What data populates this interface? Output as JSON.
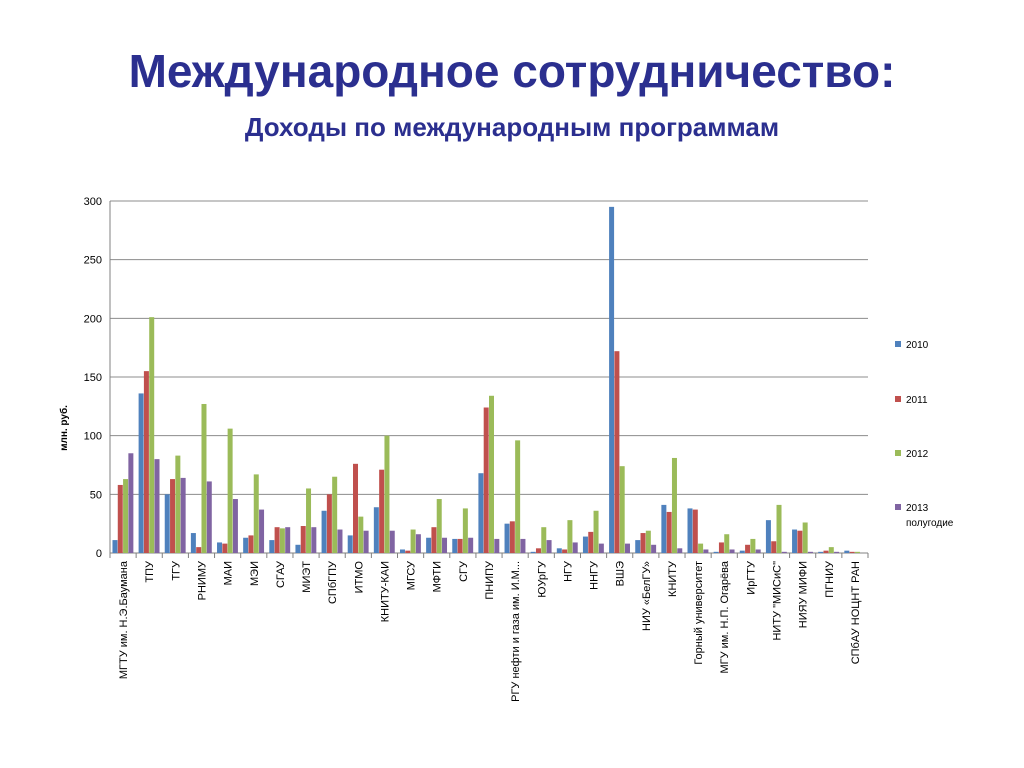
{
  "slide": {
    "title": "Международное сотрудничество:",
    "subtitle": "Доходы по международным программам"
  },
  "chart_data": {
    "type": "bar",
    "ylabel": "млн. руб.",
    "ylim": [
      0,
      300
    ],
    "yticks": [
      0,
      50,
      100,
      150,
      200,
      250,
      300
    ],
    "grid": true,
    "legend_position": "right",
    "categories": [
      "МГТУ им. Н.Э.Баумана",
      "ТПУ",
      "ТГУ",
      "РНИМУ",
      "МАИ",
      "МЭИ",
      "СГАУ",
      "МИЭТ",
      "СПбГПУ",
      "ИТМО",
      "КНИТУ-КАИ",
      "МГСУ",
      "МФТИ",
      "СГУ",
      "ПНИПУ",
      "РГУ нефти и газа им. И.М...",
      "ЮУрГУ",
      "НГУ",
      "ННГУ",
      "ВШЭ",
      "НИУ «БелГУ»",
      "КНИТУ",
      "Горный университет",
      "МГУ им. Н.П. Огарёва",
      "ИрГТУ",
      "НИТУ \"МИСиС\"",
      "НИЯУ МИФИ",
      "ПГНИУ",
      "СПбАУ НОЦНТ РАН"
    ],
    "series": [
      {
        "name": "2010",
        "color": "#4f81bd",
        "values": [
          11,
          136,
          50,
          17,
          9,
          13,
          11,
          7,
          36,
          15,
          39,
          3,
          13,
          12,
          68,
          25,
          1,
          4,
          14,
          295,
          11,
          41,
          38,
          1,
          2,
          28,
          20,
          1,
          2
        ]
      },
      {
        "name": "2011",
        "color": "#c0504d",
        "values": [
          58,
          155,
          63,
          5,
          8,
          15,
          22,
          23,
          50,
          76,
          71,
          2,
          22,
          12,
          124,
          27,
          4,
          3,
          18,
          172,
          17,
          35,
          37,
          9,
          7,
          10,
          19,
          2,
          1
        ]
      },
      {
        "name": "2012",
        "color": "#9bbb59",
        "values": [
          63,
          201,
          83,
          127,
          106,
          67,
          21,
          55,
          65,
          31,
          100,
          20,
          46,
          38,
          134,
          96,
          22,
          28,
          36,
          74,
          19,
          81,
          8,
          16,
          12,
          41,
          26,
          5,
          1
        ]
      },
      {
        "name": "2013 полугодие",
        "color": "#8064a2",
        "values": [
          85,
          80,
          64,
          61,
          46,
          37,
          22,
          22,
          20,
          19,
          19,
          16,
          13,
          13,
          12,
          12,
          11,
          9,
          8,
          8,
          7,
          4,
          3,
          3,
          3,
          1,
          1,
          1,
          0
        ]
      }
    ]
  }
}
